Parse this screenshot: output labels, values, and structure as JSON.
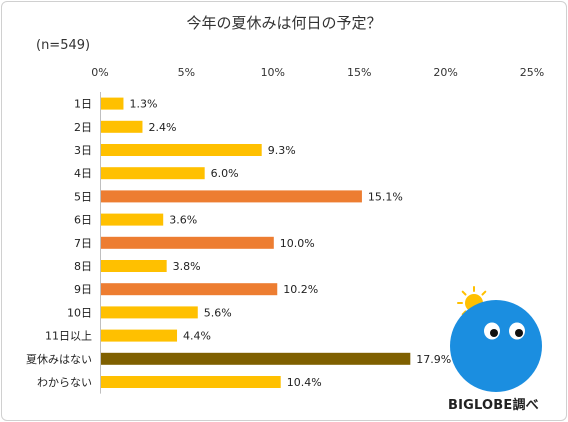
{
  "header": {
    "title": "今年の夏休みは何日の予定？",
    "sample_note": "(n=549)"
  },
  "footer": {
    "credit": "BIGLOBE調べ"
  },
  "chart_data": {
    "type": "bar",
    "orientation": "horizontal",
    "title": "今年の夏休みは何日の予定？",
    "xlim": [
      0,
      25
    ],
    "x_ticks": [
      "0%",
      "5%",
      "10%",
      "15%",
      "20%",
      "25%"
    ],
    "x_tick_values": [
      0,
      5,
      10,
      15,
      20,
      25
    ],
    "x_axis_position": "top",
    "grid": false,
    "categories": [
      "1日",
      "2日",
      "3日",
      "4日",
      "5日",
      "6日",
      "7日",
      "8日",
      "9日",
      "10日",
      "11日以上",
      "夏休みはない",
      "わからない"
    ],
    "values": [
      1.3,
      2.4,
      9.3,
      6.0,
      15.1,
      3.6,
      10.0,
      3.8,
      10.2,
      5.6,
      4.4,
      17.9,
      10.4
    ],
    "value_labels": [
      "1.3%",
      "2.4%",
      "9.3%",
      "6.0%",
      "15.1%",
      "3.6%",
      "10.0%",
      "3.8%",
      "10.2%",
      "5.6%",
      "4.4%",
      "17.9%",
      "10.4%"
    ],
    "bar_colors": [
      "#FFC000",
      "#FFC000",
      "#FFC000",
      "#FFC000",
      "#ED7D31",
      "#FFC000",
      "#ED7D31",
      "#FFC000",
      "#ED7D31",
      "#FFC000",
      "#FFC000",
      "#7F6000",
      "#FFC000"
    ]
  },
  "mascot": {
    "body_color": "#1B8EE0",
    "sun_color": "#FFC000"
  }
}
